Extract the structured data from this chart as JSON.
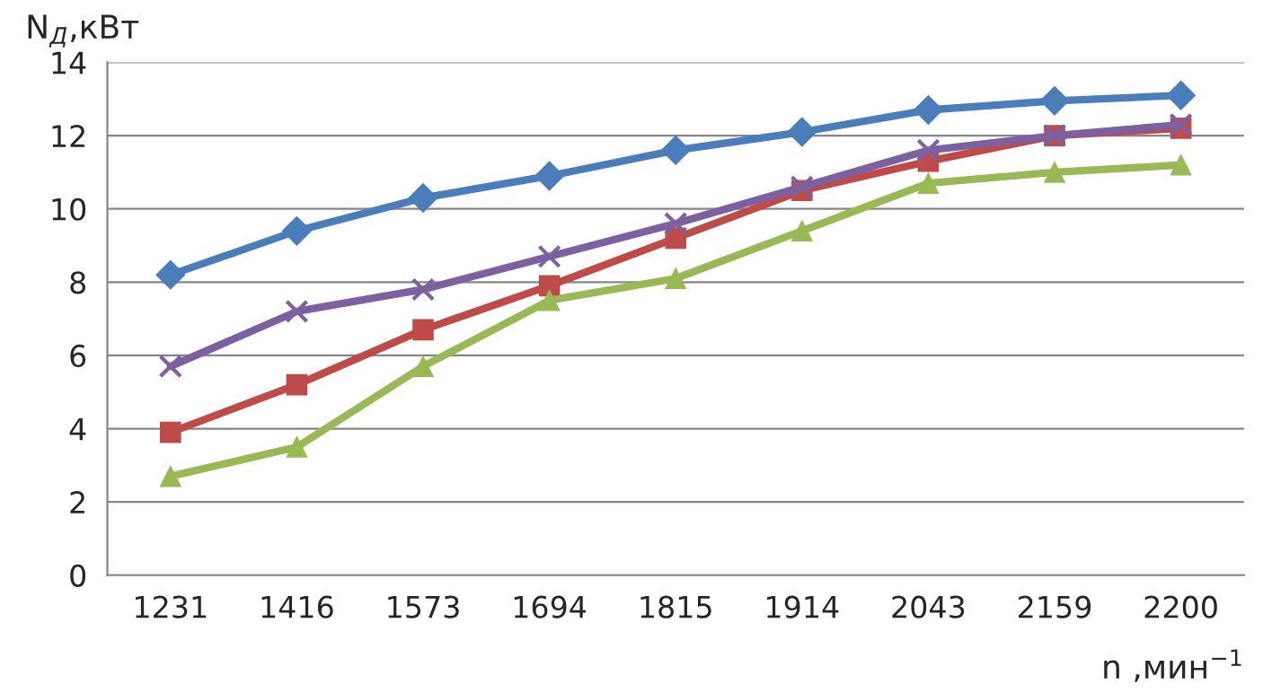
{
  "chart_data": {
    "type": "line",
    "xlabel": "n ,мин$^{−1}$",
    "ylabel": "N$_{Д}$,кВт",
    "categories": [
      "1231",
      "1416",
      "1573",
      "1694",
      "1815",
      "1914",
      "2043",
      "2159",
      "2200"
    ],
    "ylim": [
      0,
      14
    ],
    "yticks": [
      0,
      2,
      4,
      6,
      8,
      10,
      12,
      14
    ],
    "grid": "y",
    "line_style": "solid",
    "series": [
      {
        "color": "#4a7ebb",
        "marker": "diamond",
        "values": [
          8.2,
          9.4,
          10.3,
          10.9,
          11.6,
          12.1,
          12.7,
          12.95,
          13.1
        ]
      },
      {
        "color": "#be4b48",
        "marker": "square",
        "values": [
          3.9,
          5.2,
          6.7,
          7.9,
          9.2,
          10.5,
          11.3,
          12.0,
          12.2
        ]
      },
      {
        "color": "#98b954",
        "marker": "triangle",
        "values": [
          2.7,
          3.5,
          5.7,
          7.5,
          8.1,
          9.4,
          10.7,
          11.0,
          11.2
        ]
      },
      {
        "color": "#7d60a0",
        "marker": "cross",
        "values": [
          5.7,
          7.2,
          7.8,
          8.7,
          9.6,
          10.6,
          11.6,
          12.0,
          12.3
        ]
      }
    ]
  }
}
